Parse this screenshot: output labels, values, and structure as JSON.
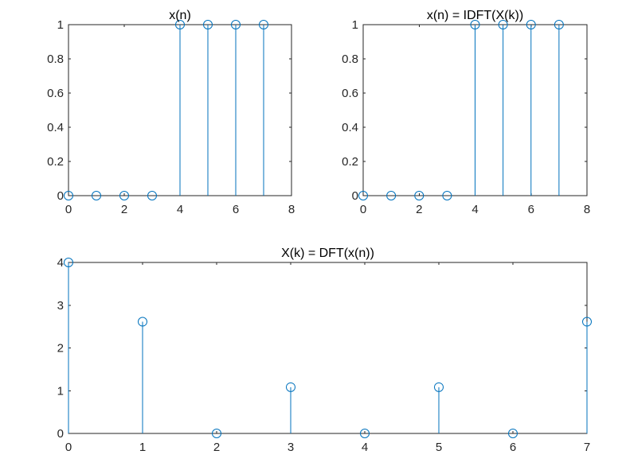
{
  "chart_data": [
    {
      "type": "stem",
      "title": "x(n)",
      "x": [
        0,
        1,
        2,
        3,
        4,
        5,
        6,
        7
      ],
      "y": [
        0,
        0,
        0,
        0,
        1,
        1,
        1,
        1
      ],
      "xlim": [
        0,
        8
      ],
      "ylim": [
        0,
        1
      ],
      "xticks": [
        0,
        2,
        4,
        6,
        8
      ],
      "xtick_labels": [
        "0",
        "2",
        "4",
        "6",
        "8"
      ],
      "yticks": [
        0,
        0.2,
        0.4,
        0.6,
        0.8,
        1
      ],
      "ytick_labels": [
        "0",
        "0.2",
        "0.4",
        "0.6",
        "0.8",
        "1"
      ],
      "color": "#0072BD",
      "grid": false
    },
    {
      "type": "stem",
      "title": "x(n) = IDFT(X(k))",
      "x": [
        0,
        1,
        2,
        3,
        4,
        5,
        6,
        7
      ],
      "y": [
        0,
        0,
        0,
        0,
        1,
        1,
        1,
        1
      ],
      "xlim": [
        0,
        8
      ],
      "ylim": [
        0,
        1
      ],
      "xticks": [
        0,
        2,
        4,
        6,
        8
      ],
      "xtick_labels": [
        "0",
        "2",
        "4",
        "6",
        "8"
      ],
      "yticks": [
        0,
        0.2,
        0.4,
        0.6,
        0.8,
        1
      ],
      "ytick_labels": [
        "0",
        "0.2",
        "0.4",
        "0.6",
        "0.8",
        "1"
      ],
      "color": "#0072BD",
      "grid": false
    },
    {
      "type": "stem",
      "title": "X(k) = DFT(x(n))",
      "x": [
        0,
        1,
        2,
        3,
        4,
        5,
        6,
        7
      ],
      "y": [
        4,
        2.613,
        0,
        1.082,
        0,
        1.082,
        0,
        2.613
      ],
      "xlim": [
        0,
        7
      ],
      "ylim": [
        0,
        4
      ],
      "xticks": [
        0,
        1,
        2,
        3,
        4,
        5,
        6,
        7
      ],
      "xtick_labels": [
        "0",
        "1",
        "2",
        "3",
        "4",
        "5",
        "6",
        "7"
      ],
      "yticks": [
        0,
        1,
        2,
        3,
        4
      ],
      "ytick_labels": [
        "0",
        "1",
        "2",
        "3",
        "4"
      ],
      "color": "#0072BD",
      "grid": false
    }
  ]
}
